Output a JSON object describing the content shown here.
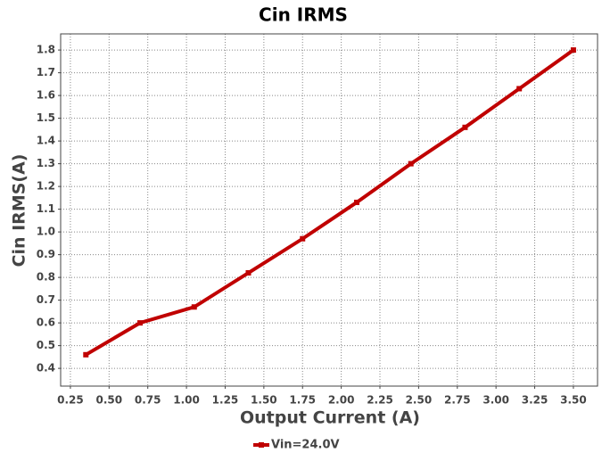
{
  "chart_data": {
    "type": "line",
    "title": "Cin IRMS",
    "xlabel": "Output Current (A)",
    "ylabel": "Cin IRMS(A)",
    "x": [
      0.35,
      0.7,
      1.05,
      1.4,
      1.75,
      2.1,
      2.45,
      2.8,
      3.15,
      3.5
    ],
    "series": [
      {
        "name": "Vin=24.0V",
        "color": "#c00000",
        "values": [
          0.46,
          0.6,
          0.67,
          0.82,
          0.97,
          1.13,
          1.3,
          1.46,
          1.63,
          1.8
        ]
      }
    ],
    "xlim": [
      0.187,
      3.656
    ],
    "ylim": [
      0.322,
      1.871
    ],
    "xticks": [
      {
        "value": 0.25,
        "label": "0.25"
      },
      {
        "value": 0.5,
        "label": "0.50"
      },
      {
        "value": 0.75,
        "label": "0.75"
      },
      {
        "value": 1.0,
        "label": "1.00"
      },
      {
        "value": 1.25,
        "label": "1.25"
      },
      {
        "value": 1.5,
        "label": "1.50"
      },
      {
        "value": 1.75,
        "label": "1.75"
      },
      {
        "value": 2.0,
        "label": "2.00"
      },
      {
        "value": 2.25,
        "label": "2.25"
      },
      {
        "value": 2.5,
        "label": "2.50"
      },
      {
        "value": 2.75,
        "label": "2.75"
      },
      {
        "value": 3.0,
        "label": "3.00"
      },
      {
        "value": 3.25,
        "label": "3.25"
      },
      {
        "value": 3.5,
        "label": "3.50"
      }
    ],
    "yticks": [
      0.4,
      0.5,
      0.6,
      0.7,
      0.8,
      0.9,
      {
        "value": 1.0,
        "label": "1.0"
      },
      1.1,
      1.2,
      1.3,
      1.4,
      1.5,
      1.6,
      1.7,
      1.8
    ],
    "grid": true,
    "legend": "bottom"
  }
}
